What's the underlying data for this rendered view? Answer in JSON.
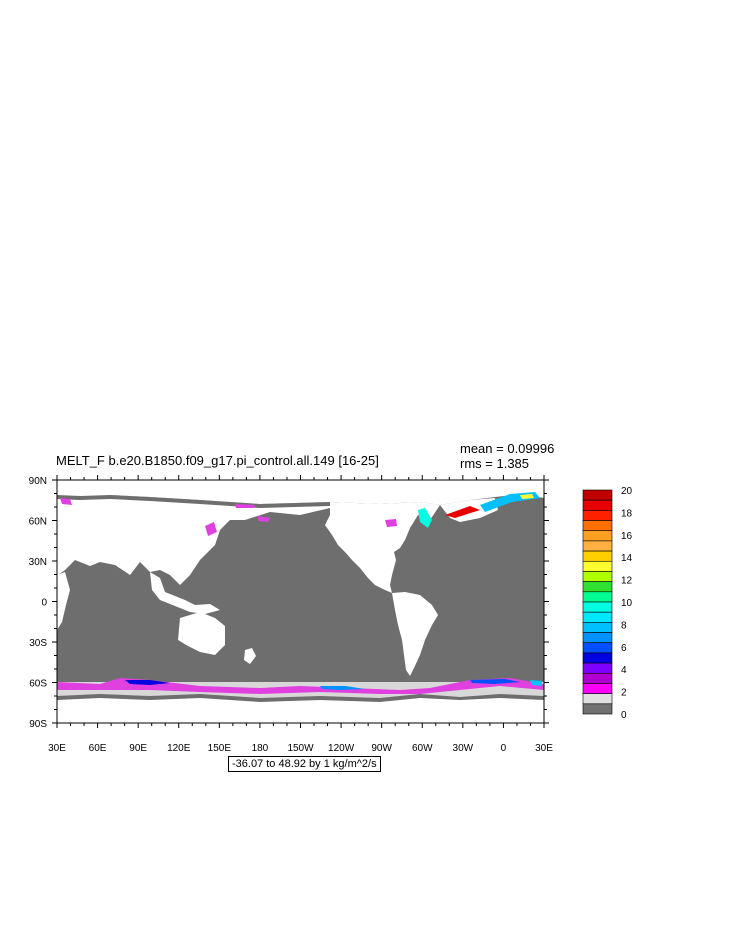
{
  "title": "MELT_F b.e20.B1850.f09_g17.pi_control.all.149 [16-25]",
  "stats": {
    "mean": "mean = 0.09996",
    "rms": "rms = 1.385"
  },
  "range_label": "-36.07 to 48.92 by 1 kg/m^2/s",
  "lat_labels": [
    "90N",
    "60N",
    "30N",
    "0",
    "30S",
    "60S",
    "90S"
  ],
  "lon_labels": [
    "30E",
    "60E",
    "90E",
    "120E",
    "150E",
    "180",
    "150W",
    "120W",
    "90W",
    "60W",
    "30W",
    "0",
    "30E"
  ],
  "colorbar": {
    "labels": [
      "20",
      "18",
      "16",
      "14",
      "12",
      "10",
      "8",
      "6",
      "4",
      "2",
      "0"
    ],
    "colors_top_to_bottom": [
      "#c00000",
      "#e80000",
      "#ff2000",
      "#ff7000",
      "#ffa020",
      "#ffb040",
      "#ffd000",
      "#ffff30",
      "#b0ff00",
      "#30e030",
      "#00ff90",
      "#00ffe0",
      "#00e8ff",
      "#00c0ff",
      "#0090ff",
      "#0050ff",
      "#0000e0",
      "#8000ff",
      "#b000d0",
      "#ff00ff",
      "#e0e0e0",
      "#707070"
    ]
  },
  "colors": {
    "land": "#ffffff",
    "ocean": "#6e6e6e",
    "seaice": "#d8d8d8",
    "melt": "#e040e0"
  }
}
